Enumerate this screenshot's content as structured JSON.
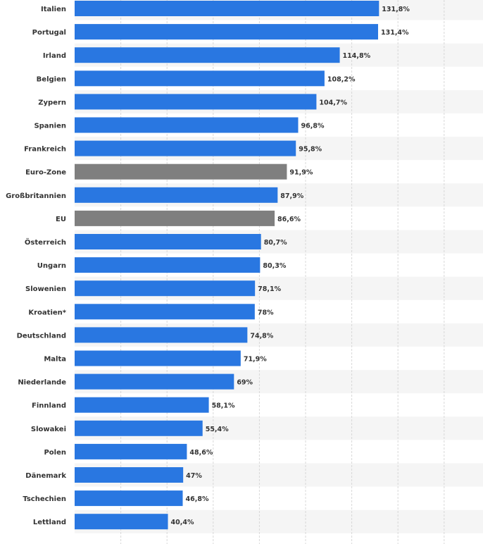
{
  "chart_data": {
    "type": "bar",
    "orientation": "horizontal",
    "title": "",
    "xlabel": "",
    "ylabel": "",
    "unit": "%",
    "grid": true,
    "categories": [
      "Italien",
      "Portugal",
      "Irland",
      "Belgien",
      "Zypern",
      "Spanien",
      "Frankreich",
      "Euro-Zone",
      "Großbritannien",
      "EU",
      "Österreich",
      "Ungarn",
      "Slowenien",
      "Kroatien*",
      "Deutschland",
      "Malta",
      "Niederlande",
      "Finnland",
      "Slowakei",
      "Polen",
      "Dänemark",
      "Tschechien",
      "Lettland"
    ],
    "values": [
      131.8,
      131.4,
      114.8,
      108.2,
      104.7,
      96.8,
      95.8,
      91.9,
      87.9,
      86.6,
      80.7,
      80.3,
      78.1,
      78,
      74.8,
      71.9,
      69,
      58.1,
      55.4,
      48.6,
      47,
      46.8,
      40.4
    ],
    "value_labels": [
      "131,8%",
      "131,4%",
      "114,8%",
      "108,2%",
      "104,7%",
      "96,8%",
      "95,8%",
      "91,9%",
      "87,9%",
      "86,6%",
      "80,7%",
      "80,3%",
      "78,1%",
      "78%",
      "74,8%",
      "71,9%",
      "69%",
      "58,1%",
      "55,4%",
      "48,6%",
      "47%",
      "46,8%",
      "40,4%"
    ],
    "highlight": [
      "Euro-Zone",
      "EU"
    ],
    "colors": {
      "bar": "#2977e1",
      "highlight": "#7f7f7f",
      "grid": "#d8d8d8",
      "label": "#333333",
      "band": "#f5f5f5"
    }
  }
}
